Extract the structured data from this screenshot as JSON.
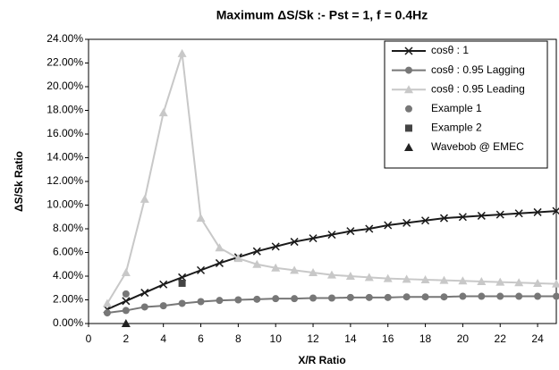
{
  "chart_data": {
    "type": "line",
    "title": "Maximum ΔS/Sk :- Pst = 1, f = 0.4Hz",
    "x_label": "X/R Ratio",
    "y_label": "ΔS/Sk Ratio",
    "xlim": [
      0,
      25
    ],
    "xticks": [
      0,
      2,
      4,
      6,
      8,
      10,
      12,
      14,
      16,
      18,
      20,
      22,
      24
    ],
    "ylim": [
      0,
      24
    ],
    "yticks": [
      {
        "value": 0,
        "label": "0.00%"
      },
      {
        "value": 2,
        "label": "2.00%"
      },
      {
        "value": 4,
        "label": "4.00%"
      },
      {
        "value": 6,
        "label": "6.00%"
      },
      {
        "value": 8,
        "label": "8.00%"
      },
      {
        "value": 10,
        "label": "10.00%"
      },
      {
        "value": 12,
        "label": "12.00%"
      },
      {
        "value": 14,
        "label": "14.00%"
      },
      {
        "value": 16,
        "label": "16.00%"
      },
      {
        "value": 18,
        "label": "18.00%"
      },
      {
        "value": 20,
        "label": "20.00%"
      },
      {
        "value": 22,
        "label": "22.00%"
      },
      {
        "value": 24,
        "label": "24.00%"
      }
    ],
    "legend": "top-right",
    "series": [
      {
        "name": "cosθ : 1",
        "color": "#1a1a1a",
        "marker": "x",
        "line": true,
        "x": [
          1,
          2,
          3,
          4,
          5,
          6,
          7,
          8,
          9,
          10,
          11,
          12,
          13,
          14,
          15,
          16,
          17,
          18,
          19,
          20,
          21,
          22,
          23,
          24,
          25
        ],
        "values": [
          1.2,
          1.9,
          2.6,
          3.3,
          3.9,
          4.5,
          5.1,
          5.6,
          6.1,
          6.5,
          6.9,
          7.2,
          7.5,
          7.8,
          8.0,
          8.3,
          8.5,
          8.7,
          8.9,
          9.0,
          9.1,
          9.2,
          9.3,
          9.4,
          9.5
        ]
      },
      {
        "name": "cosθ : 0.95 Lagging",
        "color": "#777777",
        "marker": "circle",
        "line": true,
        "x": [
          1,
          2,
          3,
          4,
          5,
          6,
          7,
          8,
          9,
          10,
          11,
          12,
          13,
          14,
          15,
          16,
          17,
          18,
          19,
          20,
          21,
          22,
          23,
          24,
          25
        ],
        "values": [
          0.9,
          1.1,
          1.4,
          1.5,
          1.7,
          1.85,
          1.95,
          2.0,
          2.05,
          2.1,
          2.1,
          2.15,
          2.15,
          2.2,
          2.2,
          2.2,
          2.25,
          2.25,
          2.25,
          2.3,
          2.3,
          2.3,
          2.3,
          2.3,
          2.3
        ]
      },
      {
        "name": "cosθ : 0.95 Leading",
        "color": "#c8c8c8",
        "marker": "triangle",
        "line": true,
        "x": [
          1,
          2,
          3,
          4,
          5,
          6,
          7,
          8,
          9,
          10,
          11,
          12,
          13,
          14,
          15,
          16,
          17,
          18,
          19,
          20,
          21,
          22,
          23,
          24,
          25
        ],
        "values": [
          1.7,
          4.3,
          10.5,
          17.8,
          22.8,
          8.9,
          6.4,
          5.5,
          5.0,
          4.7,
          4.5,
          4.3,
          4.1,
          4.0,
          3.9,
          3.8,
          3.75,
          3.7,
          3.65,
          3.6,
          3.55,
          3.5,
          3.45,
          3.4,
          3.35
        ]
      },
      {
        "name": "Example 1",
        "color": "#777777",
        "marker": "circle",
        "line": false,
        "x": [
          2
        ],
        "values": [
          2.5
        ]
      },
      {
        "name": "Example 2",
        "color": "#444444",
        "marker": "square",
        "line": false,
        "x": [
          5
        ],
        "values": [
          3.4
        ]
      },
      {
        "name": "Wavebob @ EMEC",
        "color": "#222222",
        "marker": "triangle",
        "line": false,
        "x": [
          2
        ],
        "values": [
          0
        ]
      }
    ]
  }
}
